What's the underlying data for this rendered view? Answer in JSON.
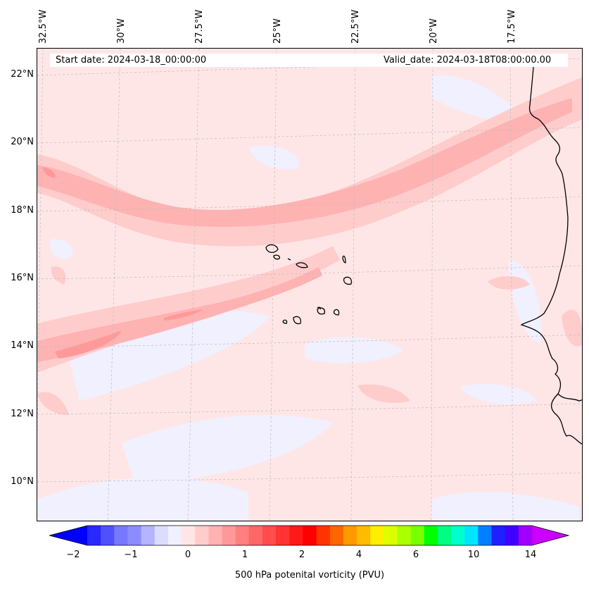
{
  "map": {
    "start_date": "Start date: 2024-03-18_00:00:00",
    "valid_date": "Valid_date: 2024-03-18T08:00:00.00",
    "lon_labels": [
      "32.5°W",
      "30°W",
      "27.5°W",
      "25°W",
      "22.5°W",
      "20°W",
      "17.5°W"
    ],
    "lat_labels": [
      "22°N",
      "20°N",
      "18°N",
      "16°N",
      "14°N",
      "12°N",
      "10°N"
    ],
    "background_color": "#ffe6e6",
    "coastline_color": "#000000"
  },
  "colorbar": {
    "title": "500 hPa potenital vorticity (PVU)",
    "ticks": [
      "−2",
      "−1",
      "0",
      "1",
      "2",
      "4",
      "6",
      "10",
      "14"
    ],
    "colors": [
      "#0000ff",
      "#2828ff",
      "#5050ff",
      "#7878ff",
      "#8c8cff",
      "#b4b4ff",
      "#dcdcff",
      "#f0f0ff",
      "#ffe6e6",
      "#ffcccc",
      "#ffb2b2",
      "#ff9999",
      "#ff7f7f",
      "#ff6666",
      "#ff4c4c",
      "#ff3333",
      "#ff1919",
      "#ff0000",
      "#ff3300",
      "#ff6600",
      "#ff9900",
      "#ffbb00",
      "#ffee00",
      "#dcff00",
      "#aaff00",
      "#78ff00",
      "#00ff00",
      "#00ff80",
      "#00ffcc",
      "#00e5ff",
      "#0080ff",
      "#2020ff",
      "#4000ff",
      "#a000ff",
      "#cc00ff"
    ]
  }
}
